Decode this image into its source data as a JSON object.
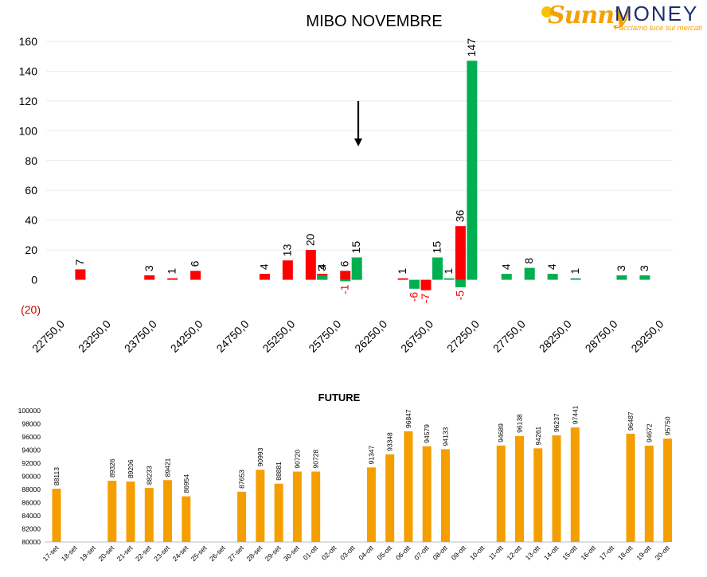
{
  "logo": {
    "brand_a": "Sunny",
    "brand_b": "MONEY",
    "tagline": "Facciamo luce sui mercati"
  },
  "colors": {
    "positive": "#00b050",
    "negative": "#ff0000",
    "future": "#f59e00",
    "negative_axis_label": "#c00000"
  },
  "chart_data": [
    {
      "type": "bar",
      "title": "MIBO NOVEMBRE",
      "xlabel": "",
      "ylabel": "",
      "ylim": [
        -20,
        160
      ],
      "y_ticks": [
        "(20)",
        "0",
        "20",
        "40",
        "60",
        "80",
        "100",
        "120",
        "140",
        "160"
      ],
      "x_ticks": [
        "22750,0",
        "23250,0",
        "23750,0",
        "24250,0",
        "24750,0",
        "25250,0",
        "25750,0",
        "26250,0",
        "26750,0",
        "27250,0",
        "27750,0",
        "28250,0",
        "28750,0",
        "29250,0"
      ],
      "grid": true,
      "annotation": "down-arrow at 26000",
      "series": [
        {
          "color": "red",
          "points": [
            {
              "x": 23000,
              "y": 7
            },
            {
              "x": 23750,
              "y": 3
            },
            {
              "x": 24000,
              "y": 1
            },
            {
              "x": 24250,
              "y": 6
            },
            {
              "x": 25000,
              "y": 4
            },
            {
              "x": 25250,
              "y": 13
            },
            {
              "x": 25500,
              "y": 20
            },
            {
              "x": 25625,
              "y": 4
            },
            {
              "x": 25875,
              "y": 6
            },
            {
              "x": 26000,
              "y": 3
            },
            {
              "x": 26500,
              "y": 1
            },
            {
              "x": 26750,
              "y": -7
            },
            {
              "x": 27125,
              "y": 36
            }
          ]
        },
        {
          "color": "green",
          "points": [
            {
              "x": 25625,
              "y": 3
            },
            {
              "x": 25875,
              "y": -1
            },
            {
              "x": 26000,
              "y": 15
            },
            {
              "x": 26625,
              "y": -6
            },
            {
              "x": 26875,
              "y": 15
            },
            {
              "x": 27000,
              "y": 1
            },
            {
              "x": 27125,
              "y": -5
            },
            {
              "x": 27250,
              "y": 147
            },
            {
              "x": 27625,
              "y": 4
            },
            {
              "x": 27875,
              "y": 8
            },
            {
              "x": 28125,
              "y": 4
            },
            {
              "x": 28375,
              "y": 1
            },
            {
              "x": 28875,
              "y": 3
            },
            {
              "x": 29125,
              "y": 3
            }
          ]
        }
      ]
    },
    {
      "type": "bar",
      "title": "FUTURE",
      "xlabel": "",
      "ylabel": "",
      "ylim": [
        80000,
        100000
      ],
      "y_ticks": [
        "80000",
        "82000",
        "84000",
        "86000",
        "88000",
        "90000",
        "92000",
        "94000",
        "96000",
        "98000",
        "100000"
      ],
      "categories": [
        "17-set",
        "18-set",
        "19-set",
        "20-set",
        "21-set",
        "22-set",
        "23-set",
        "24-set",
        "25-set",
        "26-set",
        "27-set",
        "28-set",
        "29-set",
        "30-set",
        "01-ott",
        "02-ott",
        "03-ott",
        "04-ott",
        "05-ott",
        "06-ott",
        "07-ott",
        "08-ott",
        "09-ott",
        "10-ott",
        "11-ott",
        "12-ott",
        "13-ott",
        "14-ott",
        "15-ott",
        "16-ott",
        "17-ott",
        "18-ott",
        "19-ott",
        "20-ott"
      ],
      "values": [
        88113,
        null,
        null,
        89326,
        89206,
        88233,
        89421,
        86954,
        null,
        null,
        87653,
        90993,
        88881,
        90720,
        90728,
        null,
        null,
        91347,
        93348,
        96847,
        94579,
        94133,
        null,
        null,
        94689,
        96138,
        94261,
        96237,
        97441,
        null,
        null,
        96487,
        94672,
        95750
      ]
    }
  ]
}
